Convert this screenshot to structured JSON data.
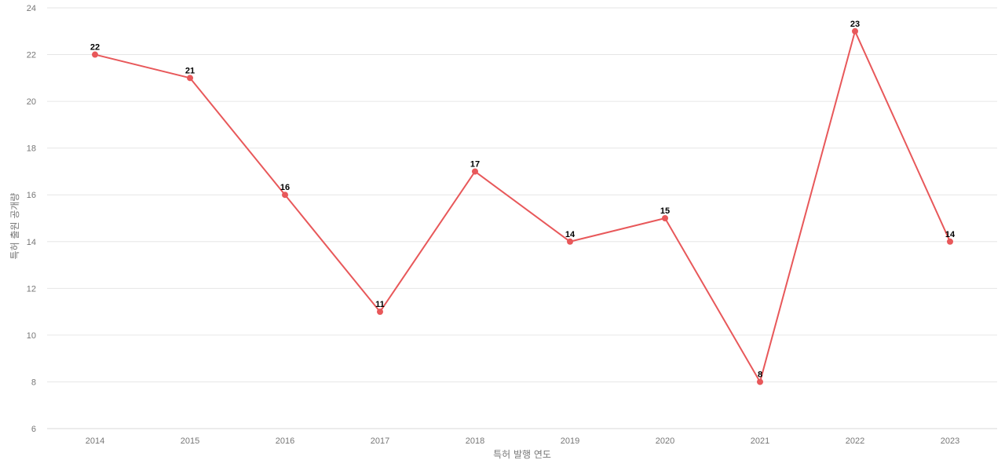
{
  "chart_data": {
    "type": "line",
    "title": "",
    "xlabel": "특허 발행 연도",
    "ylabel": "특허 출원 공개량",
    "x": [
      "2014",
      "2015",
      "2016",
      "2017",
      "2018",
      "2019",
      "2020",
      "2021",
      "2022",
      "2023"
    ],
    "series": [
      {
        "values": [
          22,
          21,
          16,
          11,
          17,
          14,
          15,
          8,
          23,
          14
        ],
        "color": "#e8585a"
      }
    ],
    "ylim": [
      6,
      24
    ],
    "yticks": [
      6,
      8,
      10,
      12,
      14,
      16,
      18,
      20,
      22,
      24
    ],
    "grid": true,
    "data_labels": true,
    "legend": "none"
  }
}
